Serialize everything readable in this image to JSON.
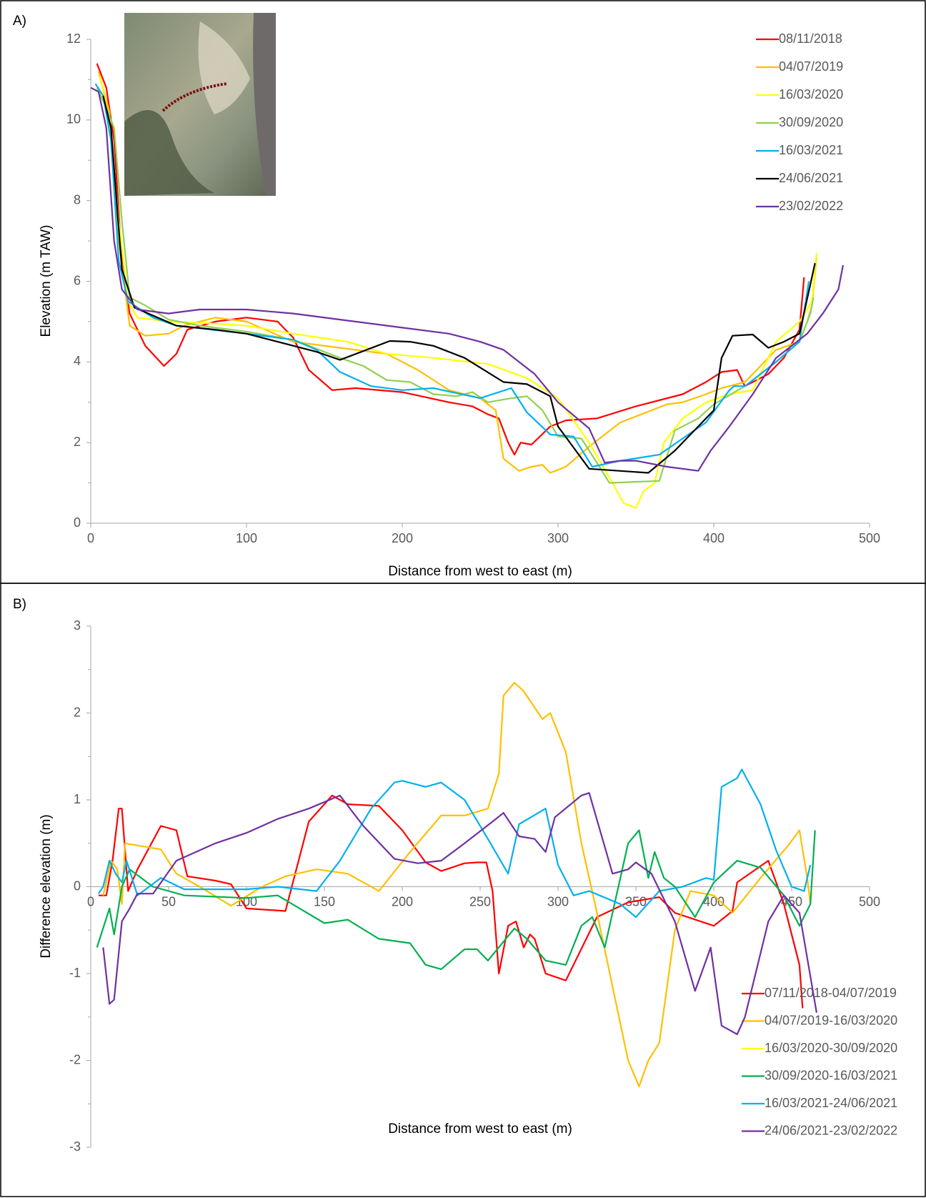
{
  "chart_data": [
    {
      "type": "line",
      "panel_label": "A)",
      "xlabel": "Distance from west to east (m)",
      "ylabel": "Elevation (m TAW)",
      "xlim": [
        0,
        500
      ],
      "xticks": [
        0,
        100,
        200,
        300,
        400,
        500
      ],
      "ylim": [
        0,
        12
      ],
      "yticks": [
        0,
        2,
        4,
        6,
        8,
        10,
        12
      ],
      "legend": "upper right",
      "series": [
        {
          "name": "08/11/2018",
          "color": "#ff0000",
          "x": [
            4,
            10,
            15,
            20,
            25,
            35,
            47,
            55,
            62,
            80,
            100,
            120,
            130,
            140,
            155,
            170,
            200,
            230,
            245,
            255,
            262,
            268,
            272,
            276,
            283,
            295,
            305,
            325,
            350,
            380,
            395,
            405,
            415,
            418,
            420,
            435,
            445,
            455,
            458
          ],
          "values": [
            11.4,
            10.8,
            9.5,
            6.5,
            5.2,
            4.4,
            3.9,
            4.2,
            4.8,
            5.0,
            5.1,
            5.0,
            4.6,
            3.8,
            3.3,
            3.35,
            3.25,
            3.0,
            2.9,
            2.7,
            2.6,
            2.0,
            1.7,
            2.0,
            1.95,
            2.4,
            2.55,
            2.6,
            2.9,
            3.2,
            3.5,
            3.75,
            3.8,
            3.55,
            3.4,
            3.7,
            4.1,
            4.8,
            6.1
          ]
        },
        {
          "name": "04/07/2019",
          "color": "#ffc000",
          "x": [
            5,
            12,
            18,
            25,
            35,
            50,
            60,
            80,
            100,
            130,
            160,
            190,
            210,
            230,
            250,
            260,
            265,
            275,
            283,
            290,
            295,
            305,
            320,
            340,
            370,
            380,
            395,
            405,
            420,
            440,
            455,
            460,
            463,
            466
          ],
          "values": [
            11.2,
            10.2,
            7.0,
            4.9,
            4.65,
            4.7,
            4.9,
            5.1,
            5.0,
            4.5,
            4.35,
            4.2,
            3.8,
            3.3,
            3.1,
            2.8,
            1.6,
            1.3,
            1.4,
            1.45,
            1.25,
            1.4,
            1.9,
            2.5,
            2.95,
            3.0,
            3.2,
            3.35,
            3.5,
            4.3,
            4.5,
            5.0,
            5.4,
            6.6
          ]
        },
        {
          "name": "16/03/2020",
          "color": "#ffff00",
          "x": [
            6,
            12,
            18,
            24,
            30,
            50,
            80,
            100,
            130,
            165,
            190,
            220,
            255,
            280,
            300,
            320,
            335,
            342,
            350,
            355,
            362,
            368,
            380,
            395,
            410,
            425,
            440,
            455,
            463,
            466
          ],
          "values": [
            11.1,
            10.0,
            7.5,
            5.5,
            5.1,
            5.0,
            4.95,
            4.9,
            4.7,
            4.5,
            4.2,
            4.1,
            3.95,
            3.6,
            3.1,
            2.0,
            1.0,
            0.5,
            0.38,
            0.8,
            1.0,
            2.0,
            2.6,
            3.0,
            3.2,
            3.3,
            4.5,
            5.0,
            5.5,
            6.7
          ]
        },
        {
          "name": "30/09/2020",
          "color": "#92d050",
          "x": [
            4,
            10,
            15,
            20,
            25,
            35,
            50,
            70,
            100,
            130,
            160,
            175,
            190,
            205,
            220,
            235,
            245,
            255,
            270,
            280,
            290,
            300,
            315,
            325,
            333,
            365,
            375,
            390,
            400,
            420,
            440,
            455,
            462,
            464
          ],
          "values": [
            10.8,
            10.3,
            9.8,
            7.5,
            5.6,
            5.4,
            5.05,
            4.9,
            4.75,
            4.55,
            4.1,
            3.9,
            3.55,
            3.5,
            3.2,
            3.15,
            3.25,
            3.0,
            3.1,
            3.15,
            2.8,
            2.15,
            2.1,
            1.5,
            1.0,
            1.05,
            2.3,
            2.6,
            2.95,
            3.4,
            4.0,
            4.5,
            5.2,
            5.6
          ]
        },
        {
          "name": "16/03/2021",
          "color": "#00b0f0",
          "x": [
            3,
            8,
            13,
            18,
            24,
            40,
            55,
            100,
            130,
            145,
            160,
            180,
            200,
            220,
            250,
            270,
            280,
            295,
            310,
            322,
            340,
            365,
            380,
            395,
            410,
            413,
            420,
            440,
            455,
            461
          ],
          "values": [
            10.9,
            10.6,
            9.5,
            6.5,
            5.5,
            5.1,
            4.9,
            4.7,
            4.55,
            4.3,
            3.75,
            3.4,
            3.3,
            3.35,
            3.1,
            3.35,
            2.75,
            2.2,
            2.15,
            1.4,
            1.55,
            1.7,
            2.1,
            2.5,
            3.3,
            3.4,
            3.4,
            4.0,
            4.5,
            6.0
          ]
        },
        {
          "name": "24/06/2021",
          "color": "#000000",
          "x": [
            8,
            13,
            20,
            28,
            40,
            55,
            80,
            100,
            145,
            160,
            192,
            205,
            220,
            240,
            265,
            280,
            295,
            300,
            320,
            358,
            375,
            390,
            400,
            405,
            412,
            425,
            435,
            445,
            455,
            465
          ],
          "values": [
            10.6,
            9.8,
            6.3,
            5.35,
            5.15,
            4.9,
            4.8,
            4.7,
            4.25,
            4.05,
            4.52,
            4.5,
            4.4,
            4.1,
            3.5,
            3.45,
            3.15,
            2.4,
            1.35,
            1.25,
            1.8,
            2.4,
            2.8,
            4.1,
            4.65,
            4.68,
            4.35,
            4.5,
            4.7,
            6.45
          ]
        },
        {
          "name": "23/02/2022",
          "color": "#7030a0",
          "x": [
            0,
            5,
            10,
            15,
            20,
            30,
            50,
            70,
            100,
            130,
            160,
            200,
            230,
            250,
            265,
            285,
            300,
            320,
            330,
            340,
            350,
            370,
            390,
            398,
            410,
            425,
            440,
            460,
            470,
            480,
            483
          ],
          "values": [
            10.8,
            10.7,
            9.8,
            7.0,
            5.8,
            5.3,
            5.2,
            5.3,
            5.3,
            5.2,
            5.05,
            4.85,
            4.7,
            4.5,
            4.3,
            3.7,
            3.0,
            2.35,
            1.5,
            1.55,
            1.55,
            1.4,
            1.3,
            1.8,
            2.4,
            3.2,
            4.1,
            4.7,
            5.2,
            5.8,
            6.4
          ]
        }
      ]
    },
    {
      "type": "line",
      "panel_label": "B)",
      "xlabel": "Distance from west to east (m)",
      "ylabel": "Difference elevation (m)",
      "xlim": [
        0,
        500
      ],
      "xticks": [
        0,
        50,
        100,
        150,
        200,
        250,
        300,
        350,
        400,
        450,
        500
      ],
      "ylim": [
        -3,
        3
      ],
      "yticks": [
        -3,
        -2,
        -1,
        0,
        1,
        2,
        3
      ],
      "legend": "lower right",
      "series": [
        {
          "name": "07/11/2018-04/07/2019",
          "color": "#ff0000",
          "x": [
            5,
            10,
            14,
            18,
            20,
            24,
            30,
            45,
            55,
            62,
            80,
            90,
            100,
            125,
            140,
            155,
            165,
            185,
            200,
            215,
            225,
            240,
            248,
            254,
            258,
            262,
            268,
            273,
            278,
            282,
            285,
            292,
            305,
            325,
            345,
            365,
            375,
            400,
            412,
            415,
            435,
            445,
            455,
            457
          ],
          "values": [
            -0.1,
            -0.1,
            0.3,
            0.9,
            0.9,
            -0.05,
            0.2,
            0.7,
            0.65,
            0.12,
            0.07,
            0.03,
            -0.25,
            -0.28,
            0.75,
            1.05,
            0.95,
            0.93,
            0.65,
            0.28,
            0.18,
            0.27,
            0.28,
            0.28,
            -0.05,
            -1.0,
            -0.45,
            -0.4,
            -0.7,
            -0.55,
            -0.6,
            -1.0,
            -1.08,
            -0.35,
            -0.18,
            -0.12,
            -0.3,
            -0.45,
            -0.28,
            0.05,
            0.3,
            -0.2,
            -0.9,
            -1.4
          ]
        },
        {
          "name": "04/07/2019-16/03/2020",
          "color": "#ffc000",
          "x": [
            8,
            13,
            17,
            20,
            22,
            45,
            55,
            70,
            90,
            110,
            125,
            145,
            165,
            185,
            205,
            225,
            240,
            255,
            262,
            265,
            272,
            278,
            290,
            295,
            305,
            315,
            325,
            345,
            352,
            358,
            365,
            375,
            385,
            400,
            412,
            430,
            448,
            455,
            460,
            462
          ],
          "values": [
            -0.1,
            0.3,
            0.2,
            -0.2,
            0.5,
            0.43,
            0.15,
            0.0,
            -0.22,
            0.0,
            0.12,
            0.2,
            0.15,
            -0.05,
            0.4,
            0.82,
            0.82,
            0.9,
            1.3,
            2.2,
            2.35,
            2.25,
            1.93,
            2.0,
            1.55,
            0.5,
            -0.3,
            -2.0,
            -2.3,
            -2.0,
            -1.8,
            -0.5,
            -0.05,
            -0.1,
            -0.3,
            0.1,
            0.48,
            0.65,
            0.1,
            -0.2
          ]
        },
        {
          "name": "16/03/2020-30/09/2020",
          "color": "#ffff00",
          "x": [],
          "values": []
        },
        {
          "name": "30/09/2020-16/03/2021",
          "color": "#00b050",
          "x": [
            4,
            12,
            15,
            20,
            25,
            40,
            60,
            100,
            120,
            150,
            165,
            185,
            205,
            215,
            225,
            240,
            248,
            255,
            272,
            280,
            292,
            305,
            315,
            322,
            330,
            345,
            352,
            358,
            362,
            368,
            375,
            388,
            400,
            415,
            430,
            445,
            455,
            462,
            465
          ],
          "values": [
            -0.7,
            -0.25,
            -0.55,
            0.0,
            0.2,
            0.0,
            -0.1,
            -0.13,
            -0.1,
            -0.42,
            -0.38,
            -0.6,
            -0.65,
            -0.9,
            -0.95,
            -0.72,
            -0.72,
            -0.85,
            -0.48,
            -0.6,
            -0.85,
            -0.9,
            -0.45,
            -0.35,
            -0.7,
            0.5,
            0.65,
            0.1,
            0.4,
            0.1,
            0.0,
            -0.35,
            0.05,
            0.3,
            0.22,
            -0.1,
            -0.45,
            -0.2,
            0.65
          ]
        },
        {
          "name": "16/03/2021-24/06/2021",
          "color": "#00b0f0",
          "x": [
            5,
            8,
            12,
            16,
            20,
            23,
            30,
            45,
            60,
            100,
            120,
            145,
            160,
            180,
            195,
            200,
            215,
            225,
            240,
            255,
            268,
            275,
            292,
            300,
            310,
            320,
            340,
            350,
            365,
            380,
            395,
            400,
            405,
            415,
            418,
            430,
            440,
            450,
            458,
            462
          ],
          "values": [
            -0.08,
            0.0,
            0.3,
            0.15,
            0.05,
            0.3,
            -0.1,
            0.1,
            -0.03,
            -0.03,
            0.0,
            -0.05,
            0.3,
            0.9,
            1.2,
            1.22,
            1.15,
            1.2,
            1.0,
            0.55,
            0.15,
            0.72,
            0.9,
            0.25,
            -0.1,
            -0.05,
            -0.2,
            -0.35,
            -0.05,
            0.0,
            0.1,
            0.08,
            1.15,
            1.25,
            1.35,
            0.95,
            0.42,
            0.0,
            -0.05,
            0.25
          ]
        },
        {
          "name": "24/06/2021-23/02/2022",
          "color": "#7030a0",
          "x": [
            8,
            12,
            15,
            20,
            25,
            30,
            40,
            55,
            80,
            100,
            120,
            140,
            160,
            175,
            195,
            210,
            225,
            240,
            258,
            265,
            275,
            285,
            292,
            298,
            315,
            320,
            335,
            345,
            350,
            360,
            375,
            388,
            396,
            398,
            405,
            415,
            420,
            435,
            445,
            455,
            466
          ],
          "values": [
            -0.7,
            -1.35,
            -1.3,
            -0.4,
            -0.25,
            -0.08,
            -0.08,
            0.3,
            0.5,
            0.62,
            0.78,
            0.9,
            1.05,
            0.7,
            0.32,
            0.27,
            0.3,
            0.5,
            0.75,
            0.85,
            0.58,
            0.55,
            0.4,
            0.8,
            1.05,
            1.08,
            0.15,
            0.2,
            0.28,
            0.15,
            -0.4,
            -1.2,
            -0.8,
            -0.7,
            -1.6,
            -1.7,
            -1.5,
            -0.4,
            -0.1,
            -0.3,
            -1.45
          ]
        }
      ]
    }
  ]
}
